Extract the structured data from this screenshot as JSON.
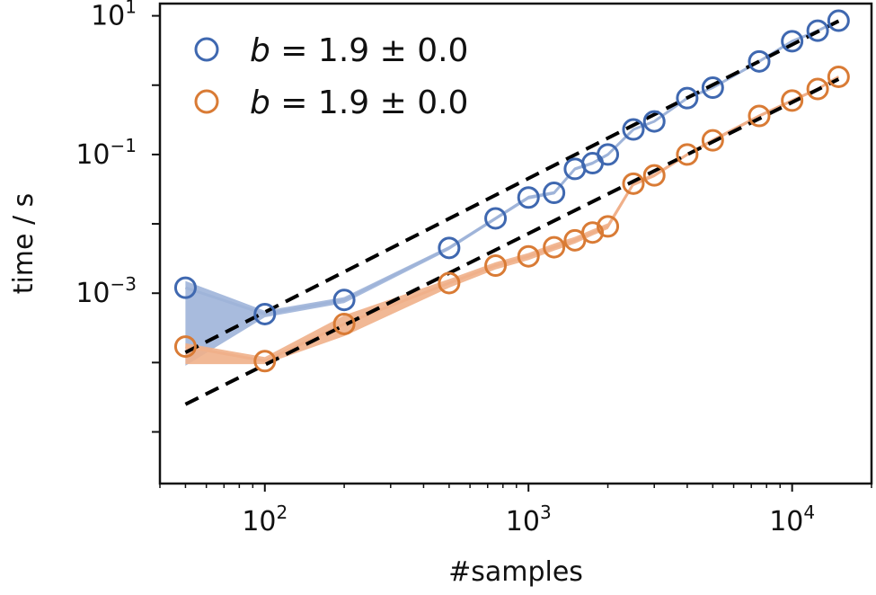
{
  "chart_data": {
    "type": "scatter",
    "xlabel": "#samples",
    "ylabel": "time / s",
    "xscale": "log",
    "yscale": "log",
    "xlim": [
      40,
      20000
    ],
    "ylim": [
      1.8e-06,
      15
    ],
    "xticks": [
      {
        "value": 100,
        "base": "10",
        "exp": "2"
      },
      {
        "value": 1000,
        "base": "10",
        "exp": "3"
      },
      {
        "value": 10000,
        "base": "10",
        "exp": "4"
      }
    ],
    "yticks": [
      {
        "value": 0.001,
        "base": "10",
        "exp": "−3"
      },
      {
        "value": 0.1,
        "base": "10",
        "exp": "−1"
      },
      {
        "value": 10,
        "base": "10",
        "exp": "1"
      }
    ],
    "legend_position": "top-left",
    "series": [
      {
        "name": "b = 1.9 ± 0.0",
        "legend": {
          "var": "b",
          "rest": " = 1.9 ± 0.0"
        },
        "color": "#3f68b0",
        "band_color": "#9fb4d9",
        "x": [
          50,
          100,
          200,
          500,
          750,
          1000,
          1250,
          1500,
          1750,
          2000,
          2500,
          3000,
          4000,
          5000,
          7500,
          10000,
          12500,
          15000
        ],
        "y": [
          0.0012,
          0.0005,
          0.0008,
          0.0045,
          0.012,
          0.024,
          0.028,
          0.062,
          0.075,
          0.1,
          0.23,
          0.3,
          0.65,
          0.92,
          2.2,
          4.3,
          6.1,
          8.5
        ],
        "band_low": [
          9e-05,
          0.00045,
          0.00072,
          0.0042,
          0.0113,
          0.0225,
          0.0265,
          0.059,
          0.071,
          0.095,
          0.22,
          0.29,
          0.62,
          0.89,
          2.1,
          4.1,
          5.9,
          8.3
        ],
        "band_high": [
          0.0015,
          0.00056,
          0.00088,
          0.0048,
          0.0127,
          0.0255,
          0.0295,
          0.065,
          0.079,
          0.105,
          0.24,
          0.31,
          0.68,
          0.95,
          2.3,
          4.5,
          6.3,
          8.7
        ],
        "fit_x": [
          50,
          15000
        ],
        "fit_y": [
          0.00014,
          8.4
        ]
      },
      {
        "name": "b = 1.9 ± 0.0",
        "legend": {
          "var": "b",
          "rest": " = 1.9 ± 0.0"
        },
        "color": "#d97b35",
        "band_color": "#f0b08a",
        "x": [
          50,
          100,
          200,
          500,
          750,
          1000,
          1250,
          1500,
          1750,
          2000,
          2500,
          3000,
          4000,
          5000,
          7500,
          10000,
          12500,
          15000
        ],
        "y": [
          0.00017,
          0.000105,
          0.00036,
          0.0014,
          0.0025,
          0.0034,
          0.0046,
          0.0058,
          0.0075,
          0.0092,
          0.038,
          0.05,
          0.1,
          0.16,
          0.36,
          0.6,
          0.88,
          1.32
        ],
        "band_low": [
          9.5e-05,
          9.5e-05,
          0.00024,
          0.0012,
          0.0022,
          0.003,
          0.0041,
          0.0052,
          0.0068,
          0.0084,
          0.035,
          0.047,
          0.095,
          0.15,
          0.34,
          0.57,
          0.84,
          1.27
        ],
        "band_high": [
          0.00019,
          0.00012,
          0.00048,
          0.0016,
          0.0028,
          0.0038,
          0.0052,
          0.0065,
          0.0083,
          0.0102,
          0.041,
          0.053,
          0.105,
          0.17,
          0.38,
          0.63,
          0.92,
          1.37
        ],
        "fit_x": [
          50,
          15000
        ],
        "fit_y": [
          2.5e-05,
          1.22
        ]
      }
    ]
  }
}
